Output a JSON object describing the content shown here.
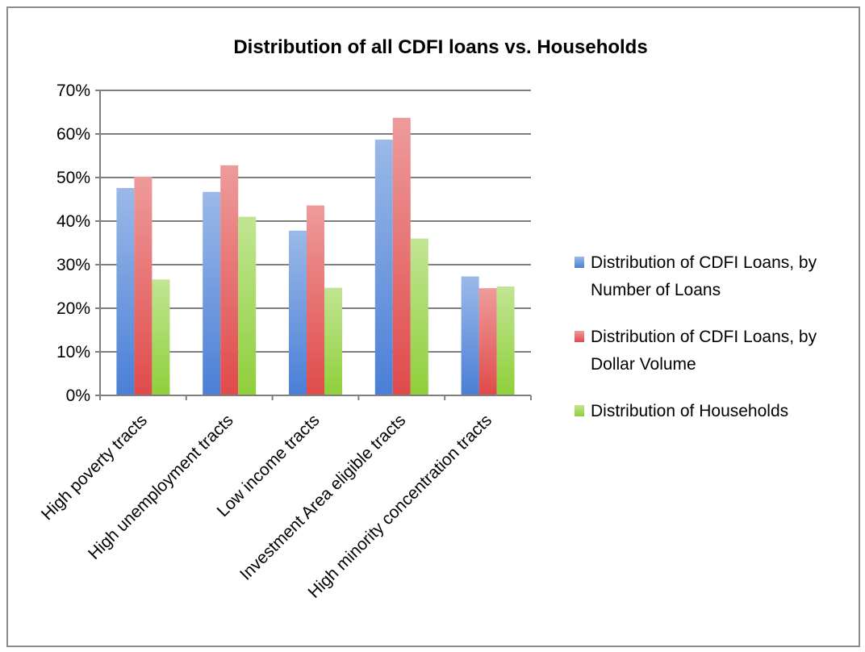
{
  "chart_data": {
    "type": "bar",
    "title": "Distribution of all CDFI loans vs. Households",
    "xlabel": "",
    "ylabel": "",
    "ylim": [
      0,
      0.7
    ],
    "y_ticks": [
      "0%",
      "10%",
      "20%",
      "30%",
      "40%",
      "50%",
      "60%",
      "70%"
    ],
    "y_tick_values": [
      0,
      0.1,
      0.2,
      0.3,
      0.4,
      0.5,
      0.6,
      0.7
    ],
    "grid": true,
    "legend_position": "right",
    "categories": [
      "High poverty tracts",
      "High unemployment tracts",
      "Low income tracts",
      "Investment Area eligible tracts",
      "High minority concentration tracts"
    ],
    "series": [
      {
        "name": "Distribution of CDFI Loans, by Number of Loans",
        "legend_lines": [
          "Distribution of CDFI Loans, by",
          "Number of Loans"
        ],
        "color": "#4a7fd6",
        "values": [
          0.476,
          0.467,
          0.378,
          0.587,
          0.273
        ]
      },
      {
        "name": "Distribution of CDFI Loans, by Dollar Volume",
        "legend_lines": [
          "Distribution of CDFI Loans, by",
          "Dollar Volume"
        ],
        "color": "#e04a4a",
        "values": [
          0.502,
          0.528,
          0.436,
          0.637,
          0.246
        ]
      },
      {
        "name": "Distribution of Households",
        "legend_lines": [
          "Distribution of Households"
        ],
        "color": "#8fcf3a",
        "values": [
          0.266,
          0.41,
          0.247,
          0.36,
          0.25
        ]
      }
    ]
  }
}
